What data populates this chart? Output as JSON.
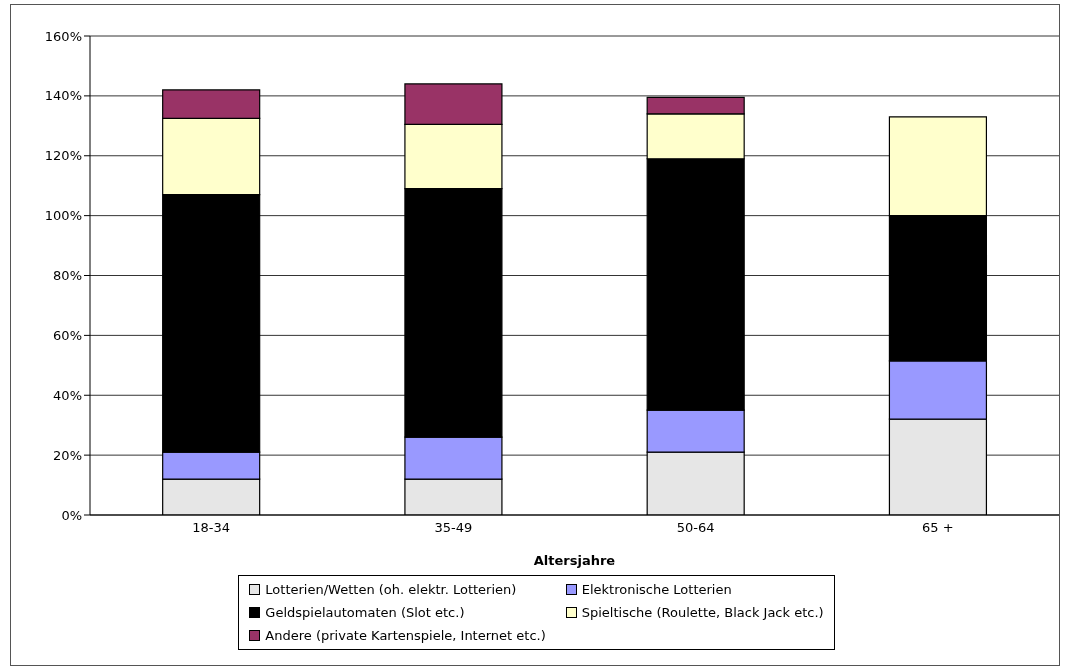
{
  "chart_data": {
    "type": "bar",
    "stacked": true,
    "xlabel": "Altersjahre",
    "categories": [
      "18-34",
      "35-49",
      "50-64",
      "65 +"
    ],
    "series": [
      {
        "name": "Lotterien/Wetten (oh. elektr. Lotterien)",
        "color": "#e6e6e6",
        "values": [
          12,
          12,
          21,
          32
        ]
      },
      {
        "name": "Elektronische Lotterien",
        "color": "#9999ff",
        "values": [
          9,
          14,
          14,
          19.5
        ]
      },
      {
        "name": "Geldspielautomaten (Slot etc.)",
        "color": "#000000",
        "values": [
          86,
          83,
          84,
          48.5
        ]
      },
      {
        "name": "Spieltische (Roulette, Black Jack etc.)",
        "color": "#ffffcc",
        "values": [
          25.5,
          21.5,
          15,
          33
        ]
      },
      {
        "name": "Andere (private Kartenspiele, Internet etc.)",
        "color": "#993366",
        "values": [
          9.5,
          13.5,
          5.5,
          0
        ]
      }
    ],
    "ylim": [
      0,
      160
    ],
    "yticks": [
      {
        "value": 0,
        "label": "0%"
      },
      {
        "value": 20,
        "label": "20%"
      },
      {
        "value": 40,
        "label": "40%"
      },
      {
        "value": 60,
        "label": "60%"
      },
      {
        "value": 80,
        "label": "80%"
      },
      {
        "value": 100,
        "label": "100%"
      },
      {
        "value": 120,
        "label": "120%"
      },
      {
        "value": 140,
        "label": "140%"
      },
      {
        "value": 160,
        "label": "160%"
      }
    ],
    "grid": "y",
    "legend": "bottom"
  }
}
